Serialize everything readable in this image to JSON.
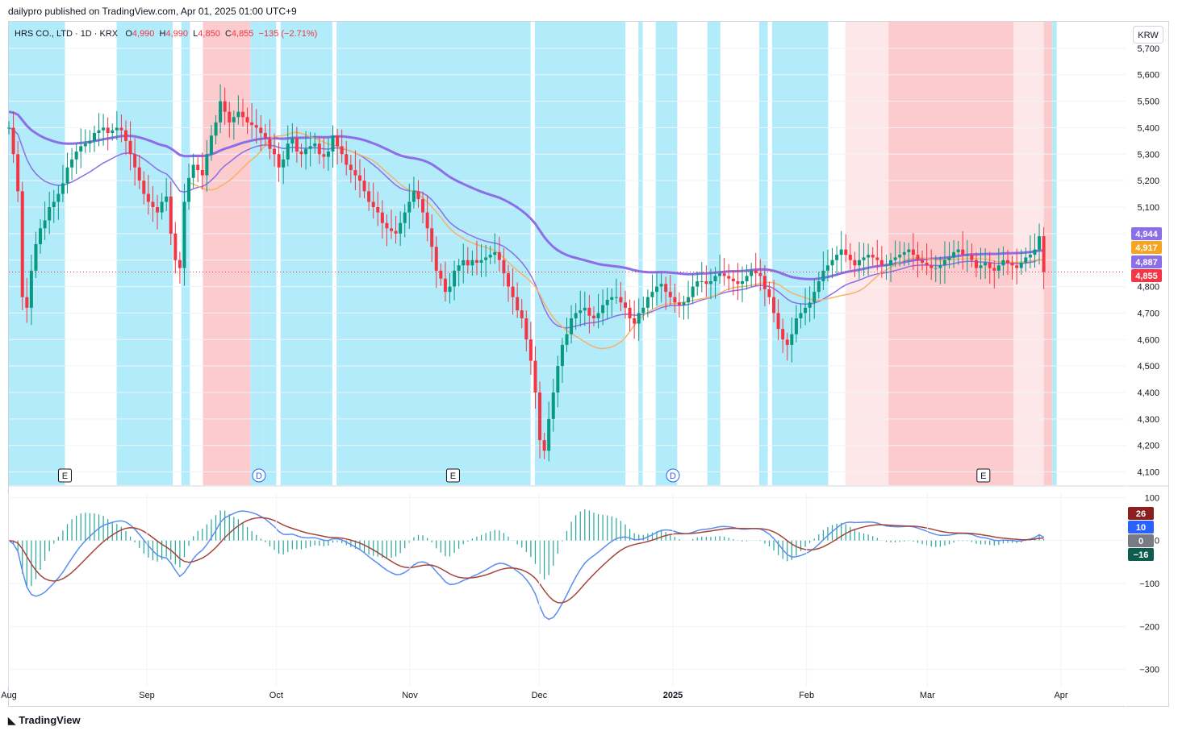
{
  "header": {
    "publisher": "dailypro published on TradingView.com, Apr 01, 2025 01:00 UTC+9"
  },
  "legend": {
    "symbol": "HRS CO., LTD · 1D · KRX",
    "o_label": "O",
    "o_value": "4,990",
    "h_label": "H",
    "h_value": "4,990",
    "l_label": "L",
    "l_value": "4,850",
    "c_label": "C",
    "c_value": "4,855",
    "change": "−135 (−2.71%)"
  },
  "currency_button": "KRW",
  "footer": {
    "logo_text": "TradingView"
  },
  "colors": {
    "up": "#089981",
    "down": "#f23645",
    "cyan_zone": "#b2ebf9",
    "pink_zone": "#fccbcd",
    "light_pink_zone": "#fde7e8",
    "ema_slow": "#8c6ee8",
    "ema_fast": "#8c6ee8",
    "sma_red": "#f23645",
    "sma_orange": "#f7b26a",
    "macd_line": "#5b8def",
    "signal_line": "#a5443a",
    "hist_up": "#26a69a"
  },
  "chart_data": [
    {
      "type": "candlestick",
      "title": "HRS CO., LTD · 1D · KRX",
      "ylim": [
        4050,
        5800
      ],
      "y_ticks": [
        4100,
        4200,
        4300,
        4400,
        4500,
        4600,
        4700,
        4800,
        4900,
        5000,
        5100,
        5200,
        5300,
        5400,
        5500,
        5600,
        5700
      ],
      "y_tick_labels": [
        "4,100",
        "4,200",
        "4,300",
        "4,400",
        "4,500",
        "4,600",
        "4,700",
        "4,800",
        "4,900",
        "5,000",
        "5,100",
        "5,200",
        "5,300",
        "5,400",
        "5,500",
        "5,600",
        "5,700"
      ],
      "x_labels": [
        "Aug",
        "Sep",
        "Oct",
        "Nov",
        "Dec",
        "2025",
        "Feb",
        "Mar",
        "Apr"
      ],
      "x_label_days": [
        0,
        32,
        62,
        93,
        123,
        154,
        185,
        213,
        244
      ],
      "day_range": [
        0,
        244
      ],
      "last_price": 4855,
      "price_tags": [
        {
          "label": "4,944",
          "value": 4944,
          "color": "#8c6ee8"
        },
        {
          "label": "4,917",
          "value": 4917,
          "color": "#f7a521"
        },
        {
          "label": "4,887",
          "value": 4887,
          "color": "#8c6ee8"
        },
        {
          "label": "4,855",
          "value": 4855,
          "color": "#f23645"
        }
      ],
      "event_markers": [
        {
          "label": "E",
          "day": 13
        },
        {
          "label": "D",
          "day": 58
        },
        {
          "label": "E",
          "day": 103
        },
        {
          "label": "D",
          "day": 154
        },
        {
          "label": "E",
          "day": 226
        }
      ],
      "zones": [
        {
          "from": 0,
          "to": 13,
          "kind": "cyan"
        },
        {
          "from": 25,
          "to": 38,
          "kind": "cyan"
        },
        {
          "from": 40,
          "to": 42,
          "kind": "cyan"
        },
        {
          "from": 45,
          "to": 56,
          "kind": "pink"
        },
        {
          "from": 56,
          "to": 59,
          "kind": "cyan"
        },
        {
          "from": 59,
          "to": 62,
          "kind": "cyan"
        },
        {
          "from": 63,
          "to": 75,
          "kind": "cyan"
        },
        {
          "from": 76,
          "to": 121,
          "kind": "cyan"
        },
        {
          "from": 122,
          "to": 143,
          "kind": "cyan"
        },
        {
          "from": 146,
          "to": 147,
          "kind": "cyan"
        },
        {
          "from": 150,
          "to": 155,
          "kind": "cyan"
        },
        {
          "from": 162,
          "to": 165,
          "kind": "cyan"
        },
        {
          "from": 174,
          "to": 176,
          "kind": "cyan"
        },
        {
          "from": 177,
          "to": 190,
          "kind": "cyan"
        },
        {
          "from": 194,
          "to": 204,
          "kind": "lightpink"
        },
        {
          "from": 204,
          "to": 233,
          "kind": "pink"
        },
        {
          "from": 233,
          "to": 240,
          "kind": "lightpink"
        },
        {
          "from": 240,
          "to": 242,
          "kind": "pink"
        },
        {
          "from": 242,
          "to": 243,
          "kind": "cyan"
        }
      ],
      "candles_close": [
        5400,
        5300,
        5160,
        4760,
        4720,
        4860,
        4960,
        5020,
        5050,
        5100,
        5120,
        5150,
        5190,
        5250,
        5280,
        5310,
        5330,
        5340,
        5350,
        5380,
        5390,
        5400,
        5380,
        5390,
        5400,
        5390,
        5350,
        5300,
        5250,
        5200,
        5150,
        5120,
        5100,
        5080,
        5120,
        5140,
        5000,
        4900,
        4870,
        5120,
        5210,
        5260,
        5240,
        5220,
        5300,
        5370,
        5420,
        5500,
        5460,
        5420,
        5440,
        5460,
        5440,
        5420,
        5410,
        5400,
        5380,
        5360,
        5320,
        5300,
        5250,
        5280,
        5340,
        5360,
        5310,
        5300,
        5320,
        5330,
        5340,
        5300,
        5290,
        5310,
        5370,
        5330,
        5300,
        5260,
        5240,
        5220,
        5200,
        5160,
        5120,
        5100,
        5080,
        5040,
        5020,
        5010,
        5000,
        5040,
        5080,
        5120,
        5160,
        5130,
        5080,
        5020,
        4950,
        4860,
        4830,
        4780,
        4800,
        4860,
        4880,
        4900,
        4880,
        4900,
        4890,
        4900,
        4910,
        4920,
        4930,
        4900,
        4850,
        4800,
        4760,
        4710,
        4680,
        4600,
        4520,
        4400,
        4220,
        4180,
        4300,
        4400,
        4500,
        4580,
        4620,
        4680,
        4700,
        4710,
        4720,
        4690,
        4680,
        4700,
        4730,
        4750,
        4760,
        4760,
        4740,
        4720,
        4680,
        4660,
        4700,
        4720,
        4760,
        4780,
        4800,
        4810,
        4780,
        4760,
        4740,
        4730,
        4740,
        4760,
        4800,
        4820,
        4820,
        4810,
        4820,
        4840,
        4850,
        4840,
        4830,
        4820,
        4810,
        4820,
        4840,
        4860,
        4850,
        4840,
        4790,
        4760,
        4700,
        4640,
        4600,
        4580,
        4620,
        4680,
        4700,
        4720,
        4740,
        4780,
        4820,
        4860,
        4880,
        4900,
        4920,
        4940,
        4920,
        4900,
        4880,
        4900,
        4910,
        4920,
        4910,
        4900,
        4880,
        4880,
        4900,
        4910,
        4920,
        4930,
        4940,
        4920,
        4900,
        4890,
        4880,
        4870,
        4870,
        4880,
        4900,
        4910,
        4930,
        4940,
        4920,
        4920,
        4900,
        4870,
        4880,
        4890,
        4870,
        4860,
        4880,
        4900,
        4890,
        4880,
        4870,
        4890,
        4910,
        4920,
        4940,
        4990,
        4855
      ]
    },
    {
      "type": "macd",
      "ylim": [
        -340,
        110
      ],
      "y_ticks": [
        100,
        0,
        -100,
        -200,
        -300
      ],
      "y_tick_labels": [
        "100",
        "0",
        "−100",
        "−200",
        "−300"
      ],
      "tags": [
        {
          "label": "26",
          "value": 26,
          "color": "#8b1e1e"
        },
        {
          "label": "10",
          "value": 10,
          "color": "#2962ff"
        },
        {
          "label": "0",
          "value": 0,
          "color": "#787b86"
        },
        {
          "label": "−16",
          "value": -16,
          "color": "#0d5c4e"
        }
      ]
    }
  ]
}
